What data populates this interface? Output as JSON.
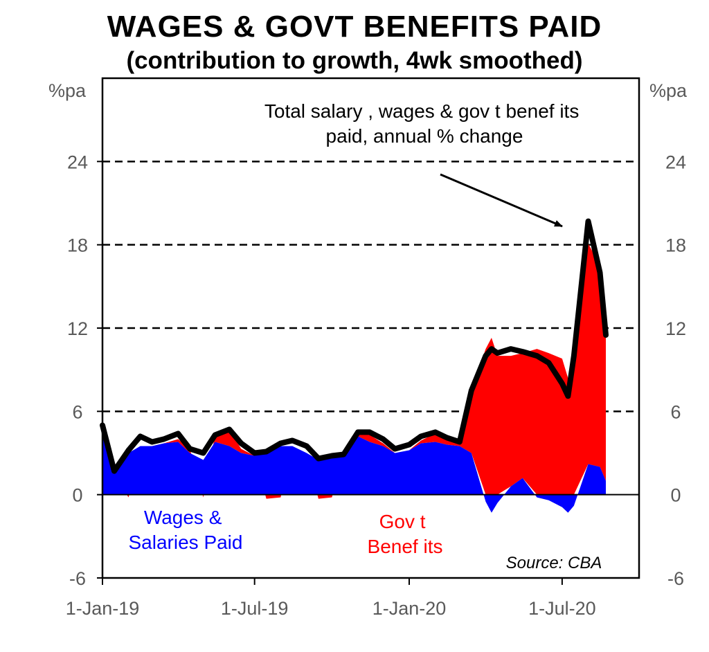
{
  "title": "WAGES & GOVT BENEFITS PAID",
  "subtitle": "(contribution to growth, 4wk smoothed)",
  "chart_data": {
    "type": "area",
    "title": "WAGES & GOVT BENEFITS PAID",
    "subtitle": "(contribution to growth, 4wk smoothed)",
    "y_unit_left": "%pa",
    "y_unit_right": "%pa",
    "ylim": [
      -6,
      30
    ],
    "y_ticks": [
      -6,
      0,
      6,
      12,
      18,
      24
    ],
    "x_range": [
      "2019-01-01",
      "2020-08-22"
    ],
    "x_ticks": [
      "1-Jan-19",
      "1-Jul-19",
      "1-Jan-20",
      "1-Jul-20"
    ],
    "x_tick_dates": [
      "2019-01-01",
      "2019-07-01",
      "2020-01-01",
      "2020-07-01"
    ],
    "grid": "dashed horizontal at 6, 12, 18, 24",
    "annotations": {
      "total": "Total salary , wages & gov t benef its paid, annual % change",
      "wages": "Wages & Salaries Paid",
      "govt": "Gov t Benef its",
      "source": "Source:  CBA"
    },
    "series": [
      {
        "name": "Wages & Salaries Paid",
        "color": "#0000FF",
        "x": [
          "2019-01-01",
          "2019-01-15",
          "2019-02-01",
          "2019-02-15",
          "2019-03-01",
          "2019-03-15",
          "2019-04-01",
          "2019-04-15",
          "2019-05-01",
          "2019-05-15",
          "2019-06-01",
          "2019-06-15",
          "2019-07-01",
          "2019-07-15",
          "2019-08-01",
          "2019-08-15",
          "2019-09-01",
          "2019-09-15",
          "2019-10-01",
          "2019-10-15",
          "2019-11-01",
          "2019-11-15",
          "2019-12-01",
          "2019-12-15",
          "2020-01-01",
          "2020-01-15",
          "2020-02-01",
          "2020-02-15",
          "2020-03-01",
          "2020-03-15",
          "2020-04-01",
          "2020-04-08",
          "2020-04-15",
          "2020-05-01",
          "2020-05-15",
          "2020-06-01",
          "2020-06-15",
          "2020-07-01",
          "2020-07-08",
          "2020-07-15",
          "2020-08-01",
          "2020-08-15",
          "2020-08-22"
        ],
        "values": [
          4.5,
          1.5,
          3.0,
          3.5,
          3.5,
          3.7,
          3.8,
          3.0,
          2.5,
          3.8,
          3.5,
          3.0,
          2.8,
          3.0,
          3.5,
          3.5,
          3.0,
          2.5,
          2.6,
          2.8,
          4.2,
          3.8,
          3.5,
          3.0,
          3.2,
          3.7,
          3.8,
          3.6,
          3.5,
          3.0,
          -0.5,
          -1.3,
          -0.6,
          0.6,
          1.2,
          -0.2,
          -0.4,
          -0.9,
          -1.3,
          -0.8,
          2.2,
          2.0,
          1.0
        ]
      },
      {
        "name": "Govt Benefits",
        "color": "#FF0000",
        "x": [
          "2019-01-01",
          "2019-01-15",
          "2019-02-01",
          "2019-02-15",
          "2019-03-01",
          "2019-03-15",
          "2019-04-01",
          "2019-04-15",
          "2019-05-01",
          "2019-05-15",
          "2019-06-01",
          "2019-06-15",
          "2019-07-01",
          "2019-07-15",
          "2019-08-01",
          "2019-08-15",
          "2019-09-01",
          "2019-09-15",
          "2019-10-01",
          "2019-10-15",
          "2019-11-01",
          "2019-11-15",
          "2019-12-01",
          "2019-12-15",
          "2020-01-01",
          "2020-01-15",
          "2020-02-01",
          "2020-02-15",
          "2020-03-01",
          "2020-03-15",
          "2020-04-01",
          "2020-04-08",
          "2020-04-15",
          "2020-05-01",
          "2020-05-15",
          "2020-06-01",
          "2020-06-15",
          "2020-07-01",
          "2020-07-08",
          "2020-07-15",
          "2020-08-01",
          "2020-08-15",
          "2020-08-22"
        ],
        "values": [
          0.0,
          0.0,
          -0.2,
          0.0,
          0.0,
          0.0,
          0.2,
          0.3,
          -0.2,
          0.5,
          1.2,
          0.3,
          0.0,
          -0.3,
          -0.2,
          0.0,
          0.0,
          -0.3,
          -0.2,
          0.0,
          0.3,
          0.5,
          0.2,
          0.0,
          0.0,
          0.2,
          0.6,
          0.5,
          0.3,
          4.5,
          10.5,
          11.3,
          10.0,
          9.4,
          9.0,
          10.5,
          10.2,
          9.8,
          8.4,
          10.8,
          15.9,
          14.5,
          10.5
        ]
      },
      {
        "name": "Total salary, wages & govt benefits paid, annual % change",
        "color": "#000000",
        "x": [
          "2019-01-01",
          "2019-01-15",
          "2019-02-01",
          "2019-02-15",
          "2019-03-01",
          "2019-03-15",
          "2019-04-01",
          "2019-04-15",
          "2019-05-01",
          "2019-05-15",
          "2019-06-01",
          "2019-06-15",
          "2019-07-01",
          "2019-07-15",
          "2019-08-01",
          "2019-08-15",
          "2019-09-01",
          "2019-09-15",
          "2019-10-01",
          "2019-10-15",
          "2019-11-01",
          "2019-11-15",
          "2019-12-01",
          "2019-12-15",
          "2020-01-01",
          "2020-01-15",
          "2020-02-01",
          "2020-02-15",
          "2020-03-01",
          "2020-03-15",
          "2020-04-01",
          "2020-04-08",
          "2020-04-15",
          "2020-05-01",
          "2020-05-15",
          "2020-06-01",
          "2020-06-15",
          "2020-07-01",
          "2020-07-08",
          "2020-07-15",
          "2020-08-01",
          "2020-08-15",
          "2020-08-22"
        ],
        "values": [
          5.0,
          1.7,
          3.2,
          4.2,
          3.8,
          4.0,
          4.4,
          3.3,
          3.0,
          4.3,
          4.7,
          3.7,
          3.0,
          3.1,
          3.7,
          3.9,
          3.5,
          2.6,
          2.8,
          2.9,
          4.5,
          4.5,
          4.0,
          3.3,
          3.6,
          4.2,
          4.5,
          4.1,
          3.8,
          7.5,
          10.0,
          10.5,
          10.2,
          10.5,
          10.3,
          10.0,
          9.5,
          8.0,
          7.1,
          10.0,
          19.7,
          16.0,
          11.5
        ]
      }
    ]
  }
}
